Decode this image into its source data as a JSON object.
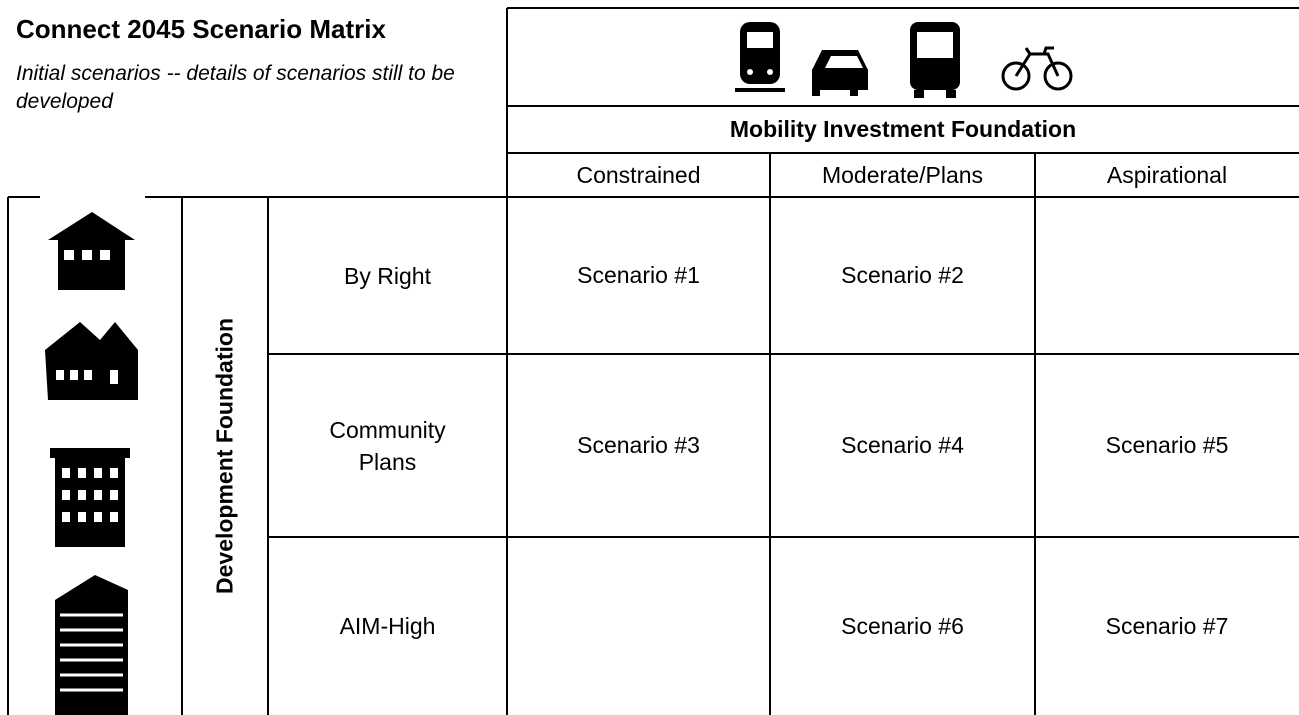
{
  "header": {
    "title": "Connect 2045 Scenario Matrix",
    "subtitle": "Initial scenarios -- details of scenarios still to be developed"
  },
  "matrix": {
    "column_group": "Mobility Investment Foundation",
    "columns": [
      "Constrained",
      "Moderate/Plans",
      "Aspirational"
    ],
    "row_group": "Development Foundation",
    "rows": [
      {
        "label": "By Right",
        "cells": [
          "Scenario #1",
          "Scenario #2",
          null
        ]
      },
      {
        "label": "Community Plans",
        "cells": [
          "Scenario #3",
          "Scenario #4",
          "Scenario #5"
        ]
      },
      {
        "label": "AIM-High",
        "cells": [
          null,
          "Scenario #6",
          "Scenario #7"
        ]
      }
    ]
  }
}
